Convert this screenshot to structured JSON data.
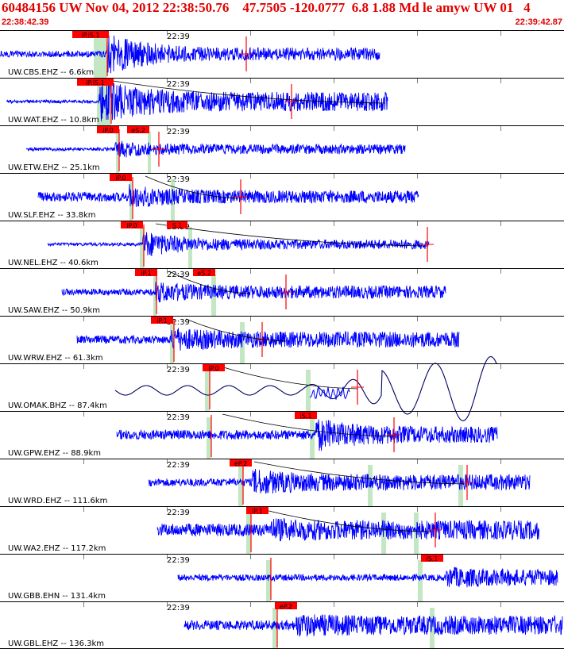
{
  "header": {
    "title": "60484156 UW Nov 04, 2012 22:38:50.76    47.7505 -120.0777  6.8 1.88 Md le amyw UW 01   4",
    "time_start": "22:38:42.39",
    "time_end": "22:39:42.87"
  },
  "colors": {
    "title": "#e00000",
    "trace": "#0000ff",
    "trace_long_period": "#000060",
    "pick_box": "#ff0000",
    "pick_text": "#000000",
    "pick_band": "#b9e3b9",
    "travel_time_curve": "#000000",
    "separator": "#000000",
    "tick_grid": "#7f7f7f"
  },
  "chart_data": {
    "type": "seismogram",
    "x_unit": "time (UTC)",
    "x_range": [
      "22:38:42.39",
      "22:39:42.87"
    ],
    "minute_marker": "22:39",
    "series": [
      {
        "label": "UW.CBS.EHZ -- 6.6km",
        "picks": [
          {
            "label": "iP.iS.1"
          }
        ]
      },
      {
        "label": "UW.WAT.EHZ -- 10.8km",
        "picks": [
          {
            "label": "iP.iS.1"
          }
        ]
      },
      {
        "label": "UW.ETW.EHZ -- 25.1km",
        "picks": [
          {
            "label": "iP.0"
          },
          {
            "label": "eS.2"
          }
        ]
      },
      {
        "label": "UW.SLF.EHZ -- 33.8km",
        "picks": [
          {
            "label": "iP.0"
          }
        ]
      },
      {
        "label": "UW.NEL.EHZ -- 40.6km",
        "picks": [
          {
            "label": "iP.0"
          },
          {
            "label": "S.1"
          }
        ]
      },
      {
        "label": "UW.SAW.EHZ -- 50.9km",
        "picks": [
          {
            "label": "iP.1"
          },
          {
            "label": "eS.2"
          }
        ]
      },
      {
        "label": "UW.WRW.EHZ -- 61.3km",
        "picks": [
          {
            "label": "iP.1"
          }
        ]
      },
      {
        "label": "UW.OMAK.BHZ -- 87.4km",
        "picks": [
          {
            "label": "iP.0"
          }
        ]
      },
      {
        "label": "UW.GPW.EHZ -- 88.9km",
        "picks": [
          {
            "label": "iS.1"
          }
        ]
      },
      {
        "label": "UW.WRD.EHZ -- 111.6km",
        "picks": [
          {
            "label": "eP.2"
          }
        ]
      },
      {
        "label": "UW.WA2.EHZ -- 117.2km",
        "picks": [
          {
            "label": "iP.1"
          }
        ]
      },
      {
        "label": "UW.GBB.EHN -- 131.4km",
        "picks": [
          {
            "label": "iS.1"
          }
        ]
      },
      {
        "label": "UW.GBL.EHZ -- 136.3km",
        "picks": [
          {
            "label": "eP.2"
          }
        ]
      }
    ]
  }
}
